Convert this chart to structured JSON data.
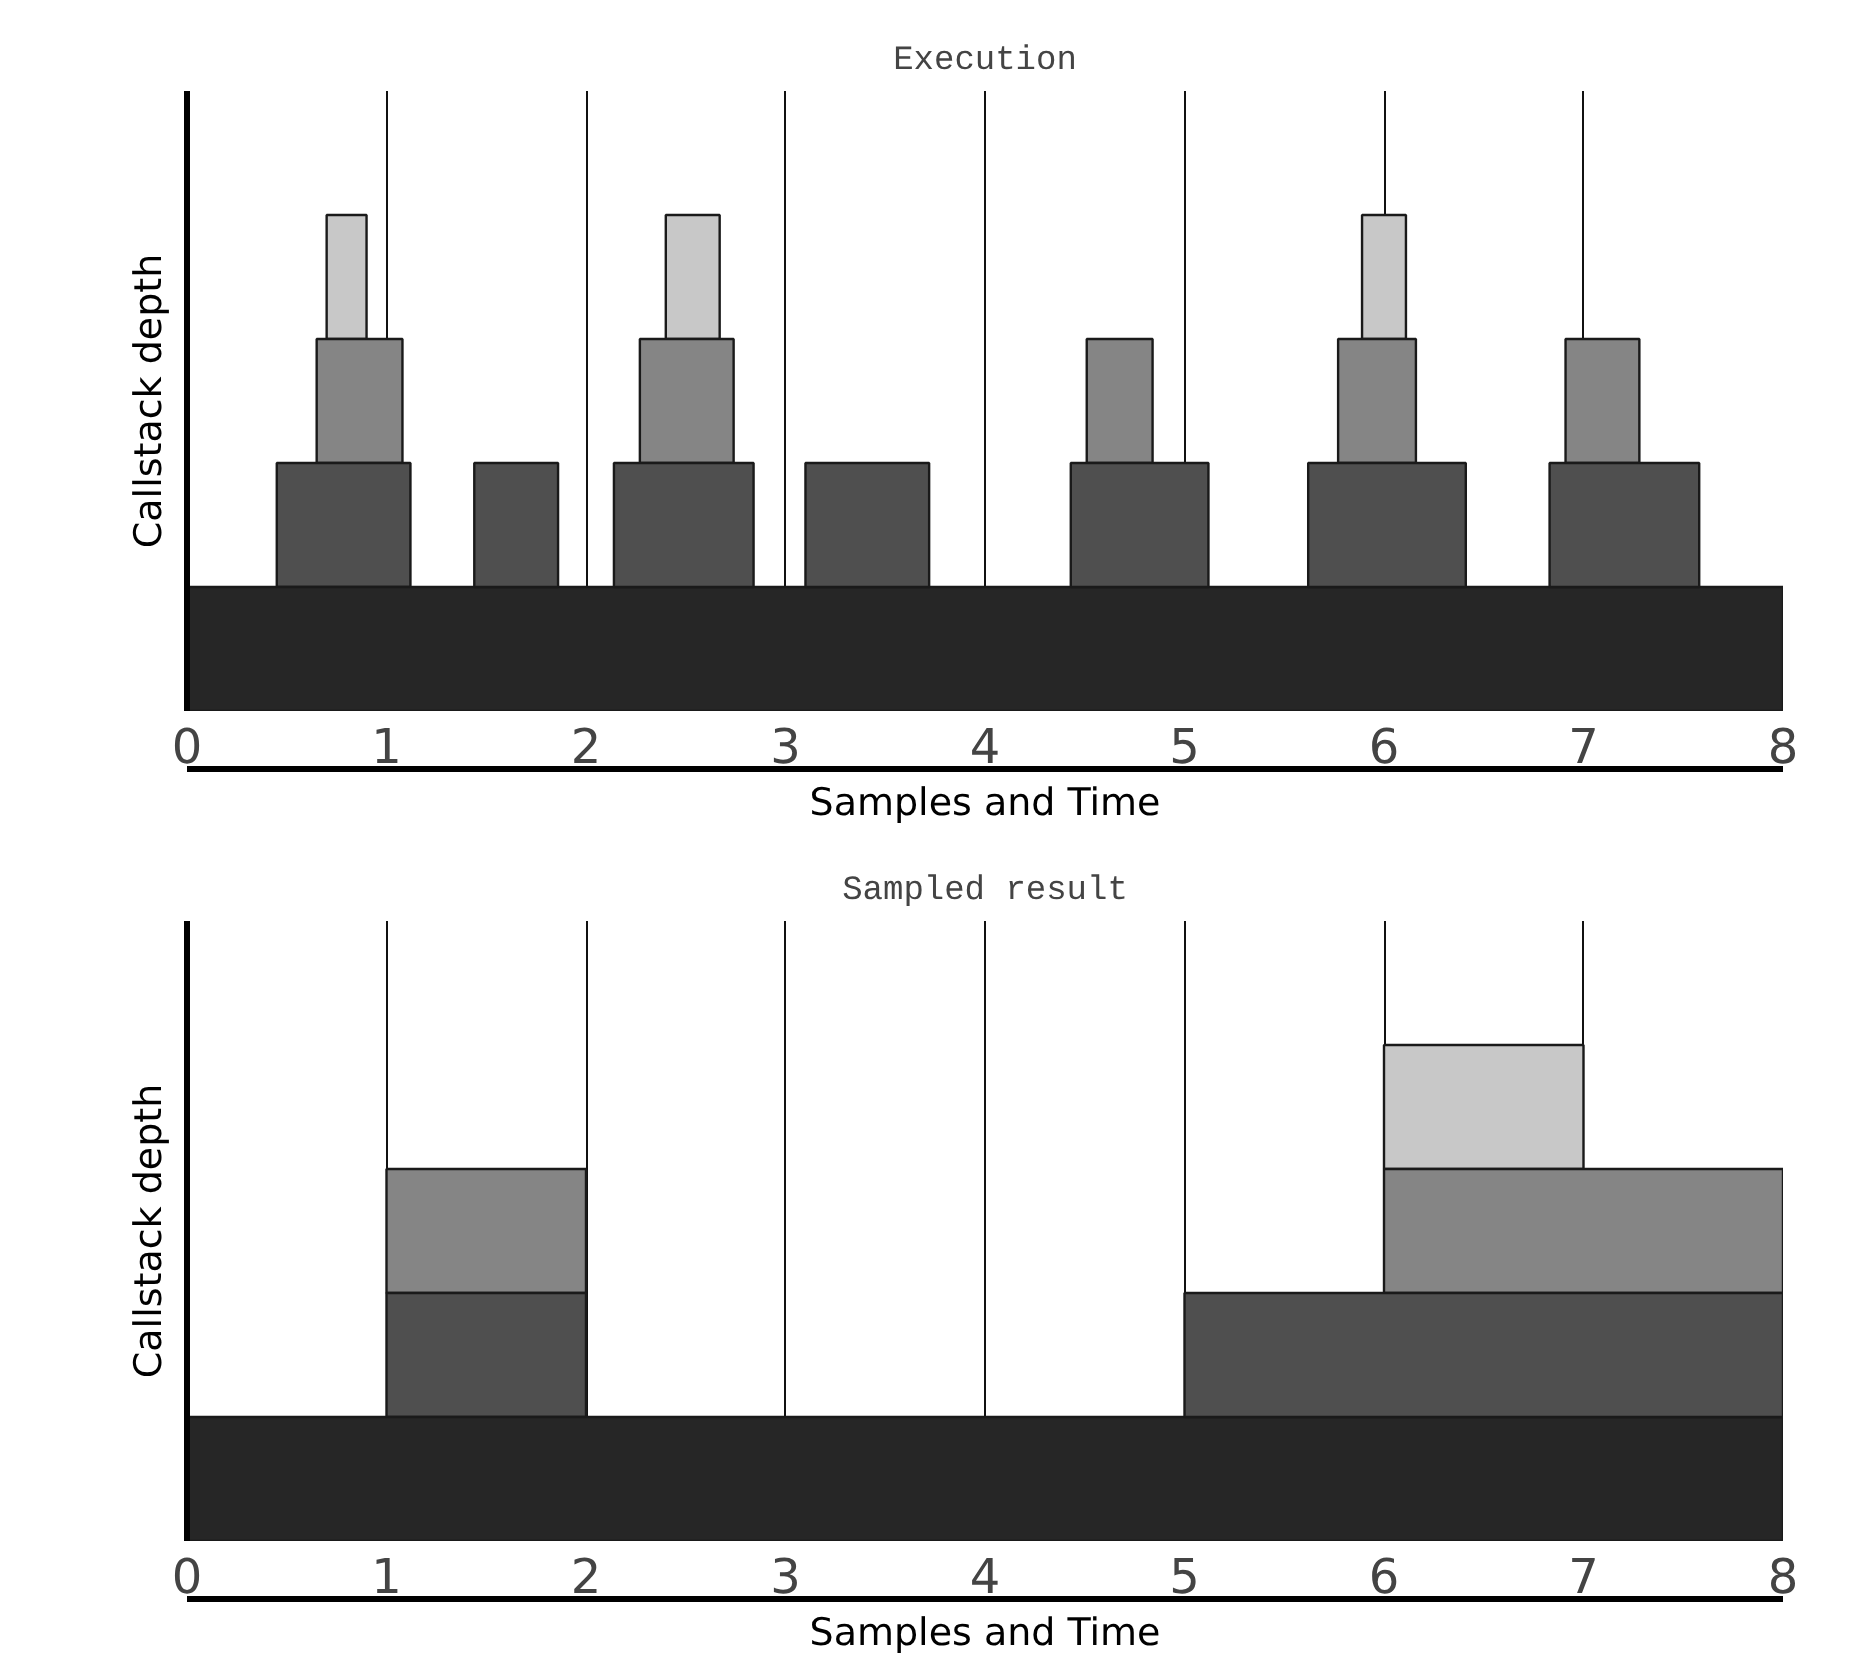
{
  "chart_data": [
    {
      "type": "bar",
      "orientation": "horizontal",
      "title": "Execution",
      "xlabel": "Samples and Time",
      "ylabel": "Callstack depth",
      "categories": [
        null,
        null,
        null,
        null,
        null
      ],
      "xlim": [
        0,
        8
      ],
      "xticks": [
        0,
        1,
        2,
        3,
        4,
        5,
        6,
        7,
        8
      ],
      "grid": "x",
      "series": [
        {
          "base": [
            null,
            0.7,
            0.65,
            0.45,
            0
          ],
          "values": [
            null,
            0.2,
            0.43,
            0.67,
            8
          ],
          "colors": [
            "#e0e0e0",
            "#c8c8c8",
            "#858585",
            "#4f4f4f",
            "#262626"
          ]
        },
        {
          "base": [
            null,
            2.4,
            2.27,
            1.44,
            null
          ],
          "values": [
            null,
            0.27,
            0.47,
            0.42,
            null
          ],
          "colors": [
            "#e0e0e0",
            "#c8c8c8",
            "#858585",
            "#4f4f4f",
            "#262626"
          ]
        },
        {
          "base": [
            null,
            5.89,
            4.51,
            2.14,
            null
          ],
          "values": [
            null,
            0.22,
            0.33,
            0.7,
            null
          ],
          "colors": [
            "#e0e0e0",
            "#c8c8c8",
            "#858585",
            "#4f4f4f",
            "#262626"
          ]
        },
        {
          "base": [
            null,
            null,
            5.77,
            3.1,
            null
          ],
          "values": [
            null,
            null,
            0.39,
            0.62,
            null
          ],
          "colors": [
            "#e0e0e0",
            "#c8c8c8",
            "#858585",
            "#4f4f4f",
            "#262626"
          ]
        },
        {
          "base": [
            null,
            null,
            6.91,
            4.43,
            null
          ],
          "values": [
            null,
            null,
            0.37,
            0.69,
            null
          ],
          "colors": [
            "#e0e0e0",
            "#c8c8c8",
            "#858585",
            "#4f4f4f",
            "#262626"
          ]
        },
        {
          "base": [
            null,
            null,
            null,
            5.62,
            null
          ],
          "values": [
            null,
            null,
            null,
            0.79,
            null
          ],
          "colors": [
            "#e0e0e0",
            "#c8c8c8",
            "#858585",
            "#4f4f4f",
            "#262626"
          ]
        },
        {
          "base": [
            null,
            null,
            null,
            6.83,
            null
          ],
          "values": [
            null,
            null,
            null,
            0.75,
            null
          ],
          "colors": [
            "#e0e0e0",
            "#c8c8c8",
            "#858585",
            "#4f4f4f",
            "#262626"
          ]
        }
      ]
    },
    {
      "type": "bar",
      "orientation": "horizontal",
      "title": "Sampled result",
      "xlabel": "Samples and Time",
      "ylabel": "Callstack depth",
      "categories": [
        null,
        null,
        null,
        null,
        null
      ],
      "xlim": [
        0,
        8
      ],
      "xticks": [
        0,
        1,
        2,
        3,
        4,
        5,
        6,
        7,
        8
      ],
      "grid": "x",
      "series": [
        {
          "base": [
            null,
            6,
            1,
            1,
            0
          ],
          "values": [
            null,
            1,
            1,
            1,
            8
          ],
          "colors": [
            "#e0e0e0",
            "#c8c8c8",
            "#858585",
            "#4f4f4f",
            "#262626"
          ]
        },
        {
          "base": [
            null,
            null,
            6,
            5,
            null
          ],
          "values": [
            null,
            null,
            2,
            3,
            null
          ],
          "colors": [
            "#e0e0e0",
            "#c8c8c8",
            "#858585",
            "#4f4f4f",
            "#262626"
          ]
        }
      ]
    }
  ]
}
